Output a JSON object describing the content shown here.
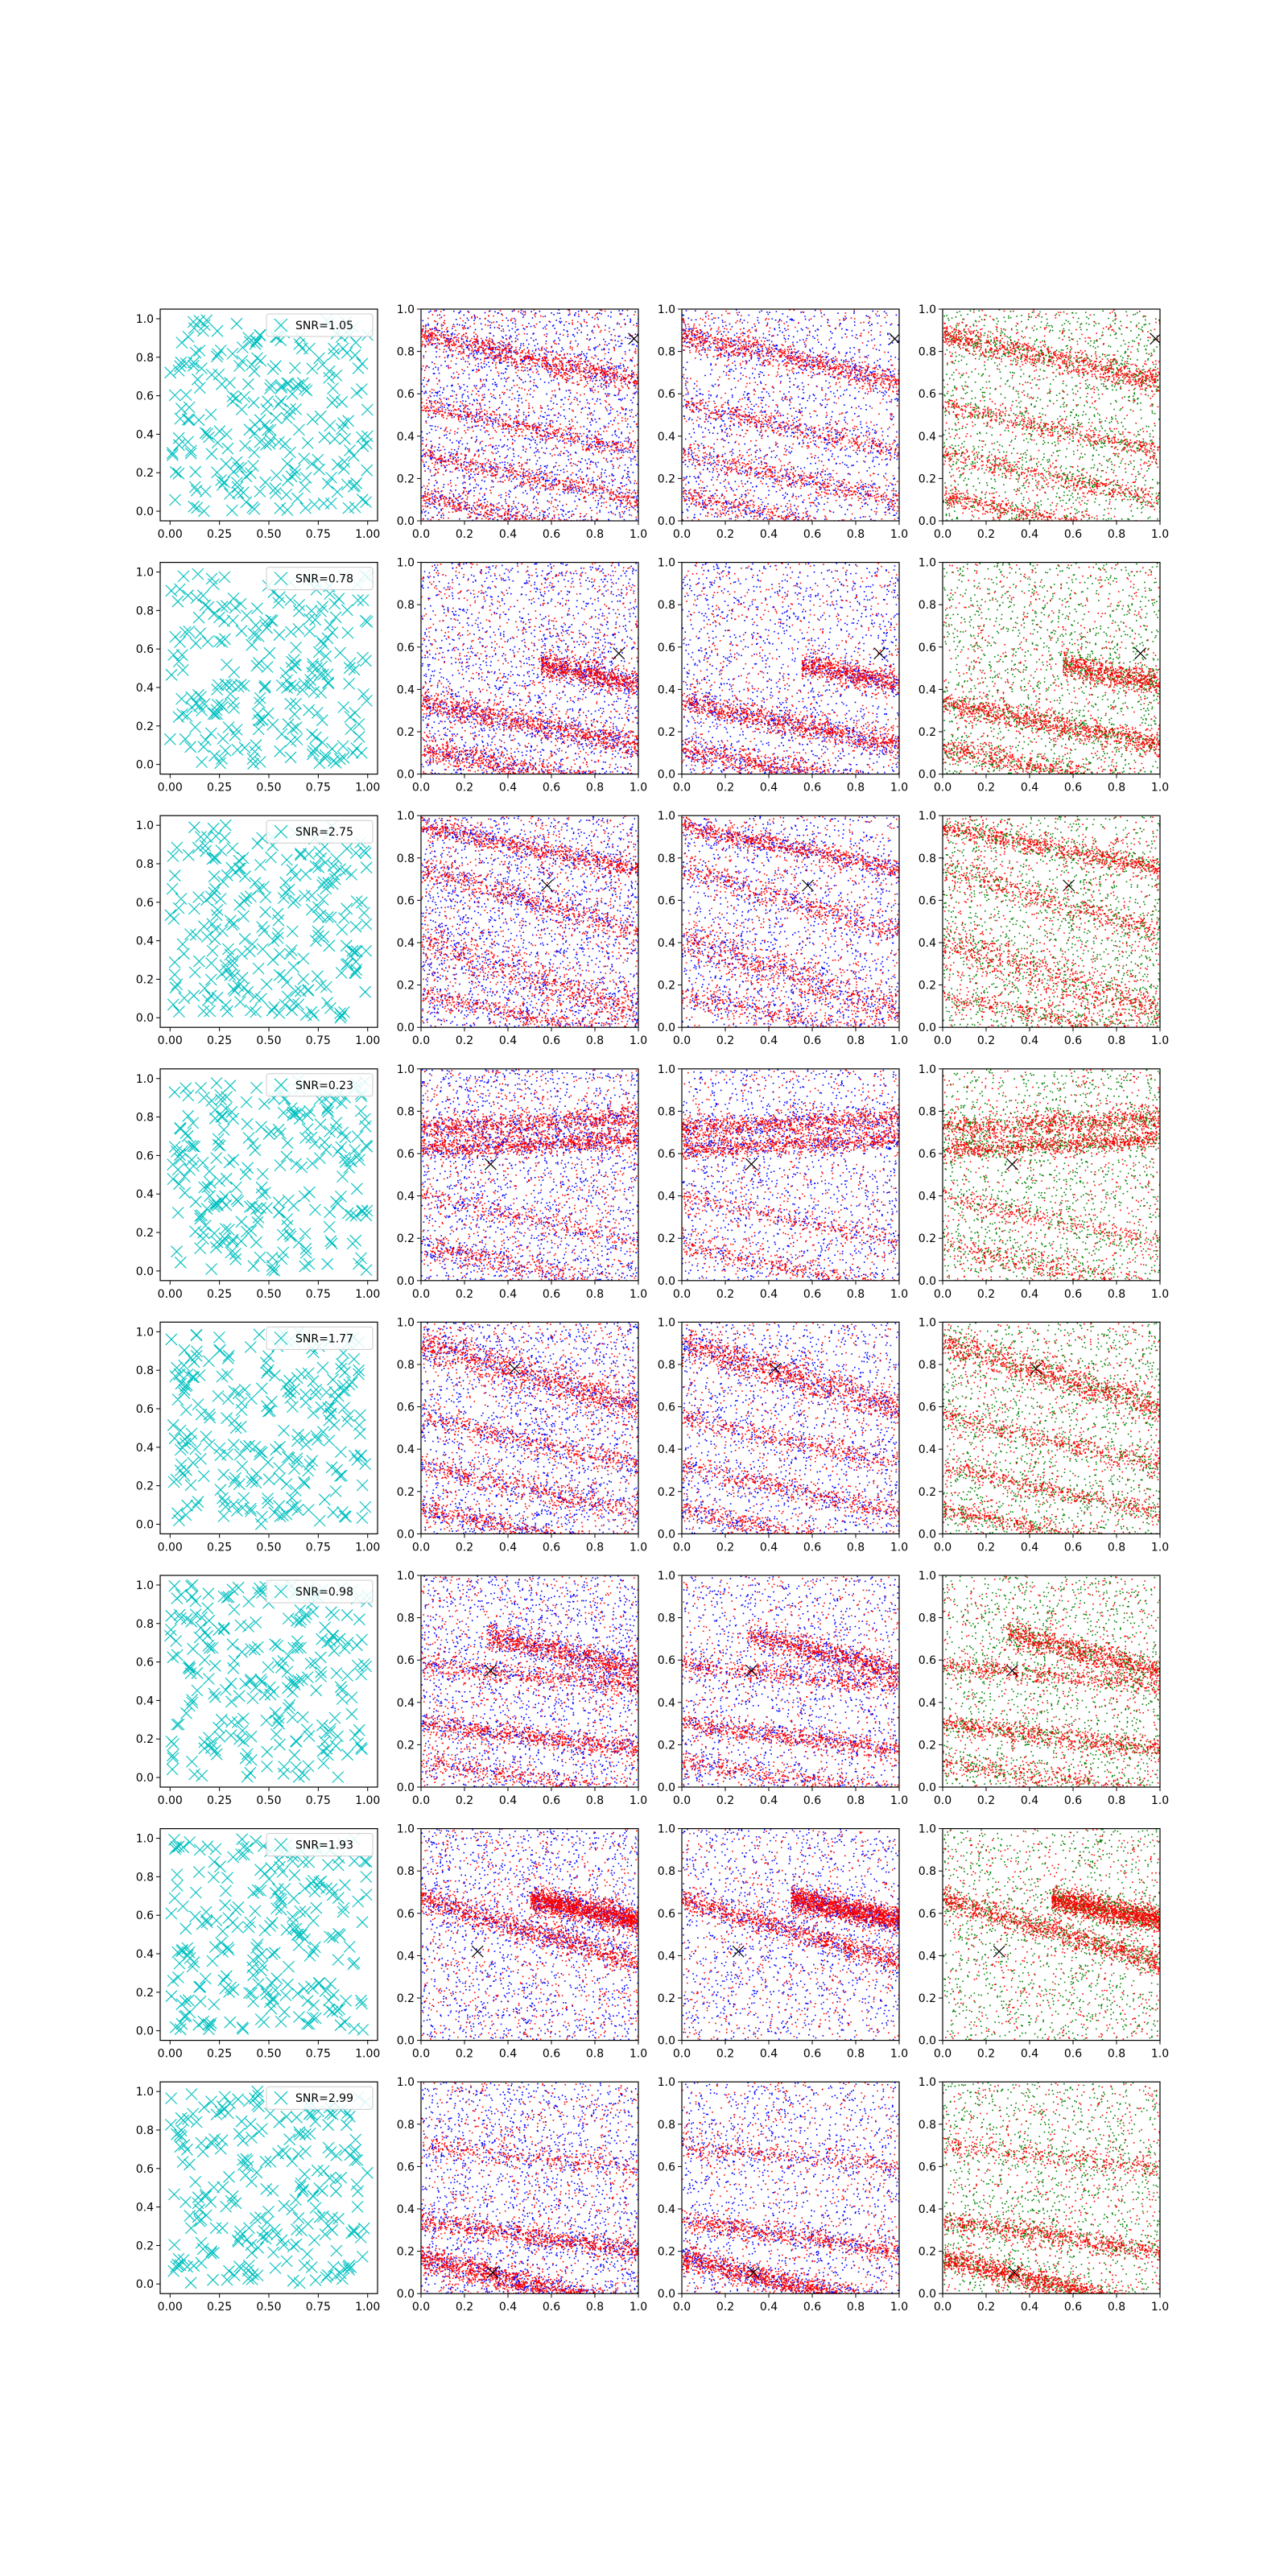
{
  "chart_data": {
    "type": "scatter",
    "grid": false,
    "layout": {
      "rows": 8,
      "columns": 4
    },
    "colors": {
      "uniform_samples": "#00bfbf",
      "class_a": "#ff0000",
      "class_b": "#0000ff",
      "class_c": "#008000",
      "marker": "#000000"
    },
    "panel_axes": {
      "first_column": {
        "xlim": [
          -0.05,
          1.05
        ],
        "ylim": [
          -0.05,
          1.05
        ],
        "xticks": [
          "0.00",
          "0.25",
          "0.50",
          "0.75",
          "1.00"
        ],
        "yticks": [
          "0.0",
          "0.2",
          "0.4",
          "0.6",
          "0.8",
          "1.0"
        ]
      },
      "other_columns": {
        "xlim": [
          0,
          1
        ],
        "ylim": [
          0,
          1
        ],
        "xticks": [
          "0.0",
          "0.2",
          "0.4",
          "0.6",
          "0.8",
          "1.0"
        ],
        "yticks": [
          "0.0",
          "0.2",
          "0.4",
          "0.6",
          "0.8",
          "1.0"
        ]
      }
    },
    "legend": {
      "marker": "x",
      "placement": "top-right"
    },
    "rows": [
      {
        "snr_label": "SNR=1.05",
        "marker_xy": [
          0.98,
          0.86
        ],
        "bands": [
          {
            "x0": 0.0,
            "y0": 0.88,
            "slope": -0.22,
            "width": 0.03,
            "density": 0.9
          },
          {
            "x0": 0.0,
            "y0": 0.55,
            "slope": -0.22,
            "width": 0.025,
            "density": 0.5
          },
          {
            "x0": 0.0,
            "y0": 0.32,
            "slope": -0.22,
            "width": 0.025,
            "density": 0.5
          },
          {
            "x0": 0.0,
            "y0": 0.12,
            "slope": -0.22,
            "width": 0.025,
            "density": 0.6
          }
        ]
      },
      {
        "snr_label": "SNR=0.78",
        "marker_xy": [
          0.91,
          0.57
        ],
        "bands": [
          {
            "x0": 0.0,
            "y0": 0.34,
            "slope": -0.2,
            "width": 0.03,
            "density": 1.0
          },
          {
            "x0": 0.0,
            "y0": 0.12,
            "slope": -0.2,
            "width": 0.03,
            "density": 0.8
          },
          {
            "x0": 0.55,
            "y0": 0.63,
            "slope": -0.2,
            "width": 0.03,
            "density": 0.7
          }
        ]
      },
      {
        "snr_label": "SNR=2.75",
        "marker_xy": [
          0.58,
          0.67
        ],
        "bands": [
          {
            "x0": 0.0,
            "y0": 0.95,
            "slope": -0.2,
            "width": 0.025,
            "density": 0.9
          },
          {
            "x0": 0.0,
            "y0": 0.75,
            "slope": -0.3,
            "width": 0.03,
            "density": 0.6
          },
          {
            "x0": 0.0,
            "y0": 0.42,
            "slope": -0.35,
            "width": 0.05,
            "density": 0.8
          },
          {
            "x0": 0.0,
            "y0": 0.15,
            "slope": -0.2,
            "width": 0.025,
            "density": 0.5
          }
        ]
      },
      {
        "snr_label": "SNR=0.23",
        "marker_xy": [
          0.32,
          0.55
        ],
        "bands": [
          {
            "x0": 0.0,
            "y0": 0.72,
            "slope": 0.05,
            "width": 0.03,
            "density": 1.2
          },
          {
            "x0": 0.0,
            "y0": 0.62,
            "slope": 0.05,
            "width": 0.025,
            "density": 1.2
          },
          {
            "x0": 0.0,
            "y0": 0.4,
            "slope": -0.22,
            "width": 0.025,
            "density": 0.4
          },
          {
            "x0": 0.0,
            "y0": 0.17,
            "slope": -0.22,
            "width": 0.03,
            "density": 0.6
          }
        ]
      },
      {
        "snr_label": "SNR=1.77",
        "marker_xy": [
          0.43,
          0.78
        ],
        "bands": [
          {
            "x0": 0.0,
            "y0": 0.9,
            "slope": -0.3,
            "width": 0.04,
            "density": 1.1
          },
          {
            "x0": 0.0,
            "y0": 0.55,
            "slope": -0.22,
            "width": 0.025,
            "density": 0.5
          },
          {
            "x0": 0.0,
            "y0": 0.32,
            "slope": -0.22,
            "width": 0.025,
            "density": 0.5
          },
          {
            "x0": 0.0,
            "y0": 0.12,
            "slope": -0.22,
            "width": 0.025,
            "density": 0.6
          }
        ]
      },
      {
        "snr_label": "SNR=0.98",
        "marker_xy": [
          0.32,
          0.55
        ],
        "bands": [
          {
            "x0": 0.3,
            "y0": 0.8,
            "slope": -0.25,
            "width": 0.03,
            "density": 1.0
          },
          {
            "x0": 0.0,
            "y0": 0.58,
            "slope": -0.1,
            "width": 0.025,
            "density": 0.6
          },
          {
            "x0": 0.0,
            "y0": 0.3,
            "slope": -0.12,
            "width": 0.025,
            "density": 0.8
          },
          {
            "x0": 0.0,
            "y0": 0.12,
            "slope": -0.15,
            "width": 0.025,
            "density": 0.5
          }
        ]
      },
      {
        "snr_label": "SNR=1.93",
        "marker_xy": [
          0.26,
          0.42
        ],
        "bands": [
          {
            "x0": 0.5,
            "y0": 0.77,
            "slope": -0.2,
            "width": 0.03,
            "density": 1.2
          },
          {
            "x0": 0.0,
            "y0": 0.67,
            "slope": -0.3,
            "width": 0.03,
            "density": 0.8
          }
        ]
      },
      {
        "snr_label": "SNR=2.99",
        "marker_xy": [
          0.33,
          0.1
        ],
        "bands": [
          {
            "x0": 0.0,
            "y0": 0.17,
            "slope": -0.25,
            "width": 0.03,
            "density": 1.2
          },
          {
            "x0": 0.0,
            "y0": 0.35,
            "slope": -0.15,
            "width": 0.025,
            "density": 0.6
          },
          {
            "x0": 0.0,
            "y0": 0.7,
            "slope": -0.1,
            "width": 0.025,
            "density": 0.3
          }
        ]
      }
    ]
  }
}
